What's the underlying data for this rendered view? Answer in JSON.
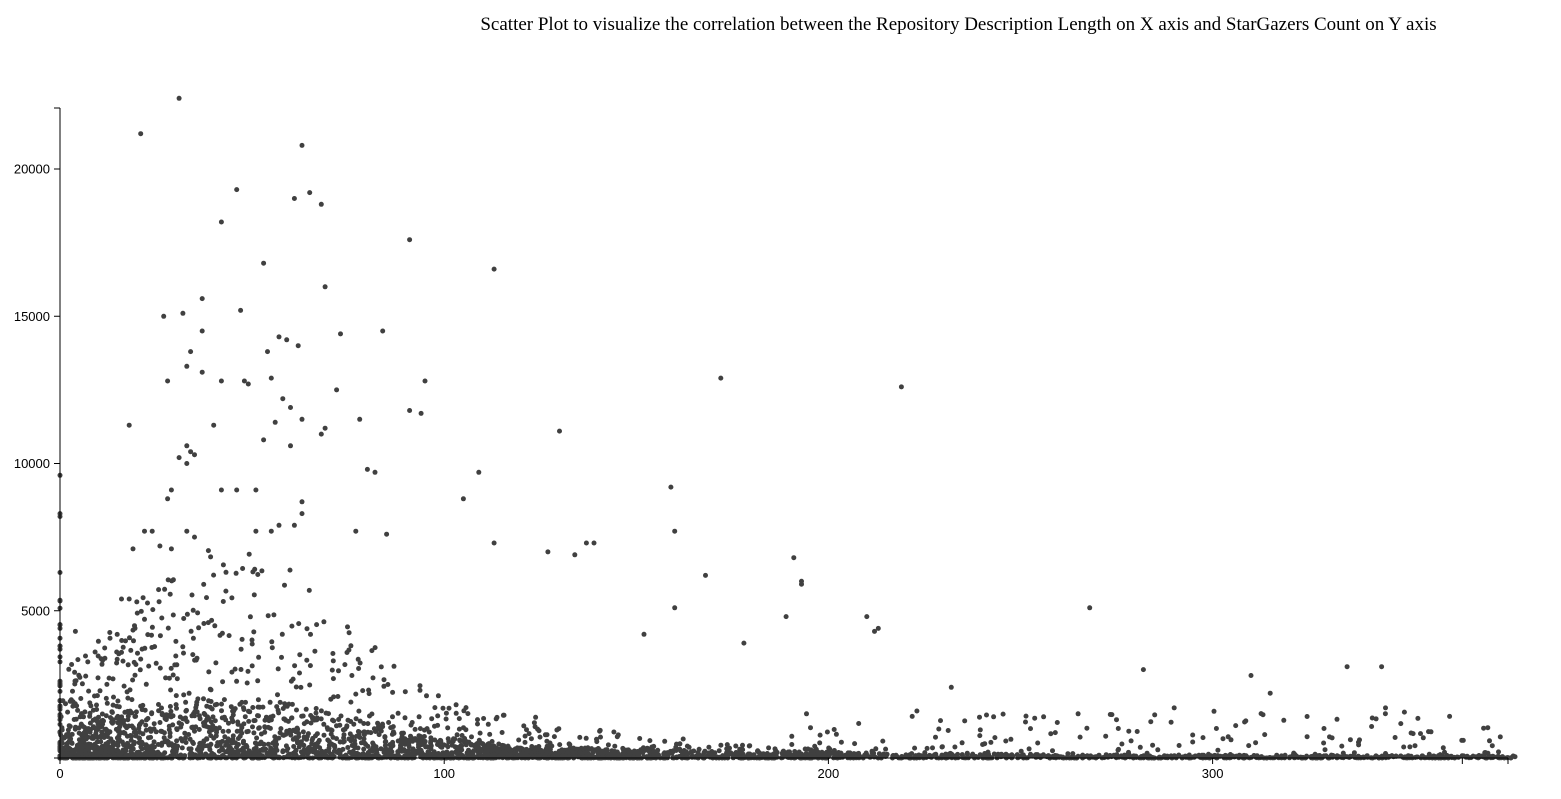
{
  "chart_data": {
    "type": "scatter",
    "title": "Scatter Plot to visualize the correlation between the Repository Description Length on X axis and StarGazers Count on Y axis",
    "xlabel": "",
    "ylabel": "",
    "xlim": [
      0,
      380
    ],
    "ylim": [
      0,
      22500
    ],
    "x_ticks": [
      0,
      100,
      200,
      300
    ],
    "y_ticks": [
      5000,
      10000,
      15000,
      20000
    ],
    "x_tick_labels": [
      "0",
      "100",
      "200",
      "300"
    ],
    "y_tick_labels": [
      "5000",
      "10000",
      "15000",
      "20000"
    ],
    "grid": false,
    "point_color": "#404040",
    "outliers": [
      [
        31,
        22400
      ],
      [
        21,
        21200
      ],
      [
        63,
        20800
      ],
      [
        46,
        19300
      ],
      [
        65,
        19200
      ],
      [
        61,
        19000
      ],
      [
        68,
        18800
      ],
      [
        42,
        18200
      ],
      [
        91,
        17600
      ],
      [
        53,
        16800
      ],
      [
        113,
        16600
      ],
      [
        69,
        16000
      ],
      [
        37,
        15600
      ],
      [
        47,
        15200
      ],
      [
        27,
        15000
      ],
      [
        32,
        15100
      ],
      [
        37,
        14500
      ],
      [
        57,
        14300
      ],
      [
        59,
        14200
      ],
      [
        62,
        14000
      ],
      [
        73,
        14400
      ],
      [
        84,
        14500
      ],
      [
        54,
        13800
      ],
      [
        34,
        13800
      ],
      [
        33,
        13300
      ],
      [
        37,
        13100
      ],
      [
        55,
        12900
      ],
      [
        42,
        12800
      ],
      [
        48,
        12800
      ],
      [
        28,
        12800
      ],
      [
        49,
        12700
      ],
      [
        95,
        12800
      ],
      [
        172,
        12900
      ],
      [
        219,
        12600
      ],
      [
        72,
        12500
      ],
      [
        58,
        12200
      ],
      [
        60,
        11900
      ],
      [
        91,
        11800
      ],
      [
        94,
        11700
      ],
      [
        78,
        11500
      ],
      [
        63,
        11500
      ],
      [
        56,
        11400
      ],
      [
        18,
        11300
      ],
      [
        40,
        11300
      ],
      [
        69,
        11200
      ],
      [
        68,
        11000
      ],
      [
        130,
        11100
      ],
      [
        53,
        10800
      ],
      [
        60,
        10600
      ],
      [
        33,
        10600
      ],
      [
        34,
        10400
      ],
      [
        35,
        10300
      ],
      [
        31,
        10200
      ],
      [
        33,
        10000
      ],
      [
        0,
        9600
      ],
      [
        80,
        9800
      ],
      [
        82,
        9700
      ],
      [
        109,
        9700
      ],
      [
        159,
        9200
      ],
      [
        29,
        9100
      ],
      [
        42,
        9100
      ],
      [
        46,
        9100
      ],
      [
        51,
        9100
      ],
      [
        28,
        8800
      ],
      [
        105,
        8800
      ],
      [
        63,
        8700
      ],
      [
        0,
        8300
      ],
      [
        0,
        8200
      ],
      [
        63,
        8300
      ],
      [
        22,
        7700
      ],
      [
        24,
        7700
      ],
      [
        33,
        7700
      ],
      [
        35,
        7500
      ],
      [
        55,
        7700
      ],
      [
        51,
        7700
      ],
      [
        57,
        7900
      ],
      [
        61,
        7900
      ],
      [
        77,
        7700
      ],
      [
        85,
        7600
      ],
      [
        160,
        7700
      ],
      [
        113,
        7300
      ],
      [
        137,
        7300
      ],
      [
        139,
        7300
      ],
      [
        19,
        7100
      ],
      [
        26,
        7200
      ],
      [
        29,
        7100
      ],
      [
        127,
        7000
      ],
      [
        134,
        6900
      ],
      [
        191,
        6800
      ],
      [
        193,
        6000
      ],
      [
        193,
        5900
      ],
      [
        168,
        6200
      ],
      [
        0,
        6300
      ],
      [
        18,
        5400
      ],
      [
        16,
        5400
      ],
      [
        20,
        5300
      ],
      [
        160,
        5100
      ],
      [
        268,
        5100
      ],
      [
        210,
        4800
      ],
      [
        212,
        4300
      ],
      [
        213,
        4400
      ],
      [
        189,
        4800
      ],
      [
        0,
        4400
      ],
      [
        4,
        4300
      ],
      [
        152,
        4200
      ],
      [
        178,
        3900
      ],
      [
        0,
        3800
      ],
      [
        232,
        2400
      ],
      [
        282,
        3000
      ],
      [
        310,
        2800
      ],
      [
        315,
        2200
      ],
      [
        335,
        3100
      ],
      [
        344,
        3100
      ],
      [
        345,
        1700
      ],
      [
        265,
        1500
      ],
      [
        256,
        1400
      ],
      [
        243,
        1400
      ],
      [
        290,
        1700
      ],
      [
        301,
        1000
      ],
      [
        306,
        1100
      ],
      [
        329,
        1000
      ],
      [
        275,
        1300
      ]
    ]
  }
}
